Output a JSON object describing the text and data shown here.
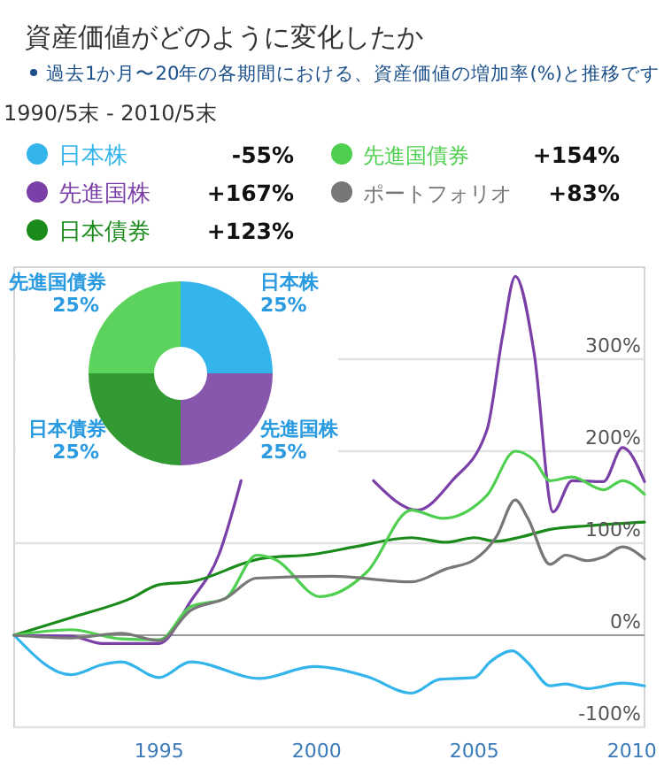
{
  "chart_data": [
    {
      "type": "line",
      "title": "資産価値がどのように変化したか",
      "subtitle": "過去1か月〜20年の各期間における、資産価値の増加率(%)と推移です",
      "annotations": [
        "1990/5末 - 2010/5末",
        "-55%",
        "+167%",
        "+123%",
        "+154%",
        "+83%"
      ],
      "series": [
        {
          "name": "日本株",
          "color": "#33b5ec",
          "x": [
            1990.4,
            1992.2,
            1993.2,
            1993.8,
            1995.0,
            1996.0,
            1998.2,
            1999.9,
            2001.6,
            2003.0,
            2003.9,
            2005.0,
            2005.5,
            2006.2,
            2006.7,
            2007.4,
            2007.9,
            2008.6,
            2009.7,
            2010.4
          ],
          "values": [
            0,
            -43,
            -32,
            -29,
            -46,
            -29,
            -47,
            -34,
            -45,
            -63,
            -48,
            -46,
            -29,
            -17,
            -30,
            -55,
            -53,
            -58,
            -52,
            -55
          ]
        },
        {
          "name": "先進国株",
          "color": "#7b3fa8",
          "x": [
            1990.4,
            1992.2,
            1993.2,
            1995.0,
            1996.0,
            1996.9,
            1997.6,
            1998.5,
            2001.8,
            2003.2,
            2004.3,
            2005.4,
            2005.9,
            2006.3,
            2006.9,
            2007.5,
            2008.1,
            2009.1,
            2009.7,
            2010.4
          ],
          "values": [
            0,
            -1,
            -9,
            -9,
            37,
            88,
            168,
            null,
            168,
            136,
            168,
            223,
            326,
            390,
            306,
            134,
            168,
            167,
            204,
            167
          ]
        },
        {
          "name": "日本債券",
          "color": "#1a8a1a",
          "x": [
            1990.4,
            1992.2,
            1994.1,
            1995.0,
            1996.0,
            1998.2,
            1999.9,
            2001.2,
            2003.0,
            2004.1,
            2005.0,
            2005.7,
            2006.5,
            2007.4,
            2008.6,
            2010.4
          ],
          "values": [
            0,
            19,
            40,
            55,
            58,
            83,
            88,
            96,
            106,
            101,
            106,
            102,
            107,
            115,
            119,
            123
          ]
        },
        {
          "name": "先進国債券",
          "color": "#4fcf4f",
          "x": [
            1990.4,
            1992.2,
            1993.8,
            1995.0,
            1996.0,
            1997.1,
            1998.1,
            1998.7,
            2000.1,
            2001.6,
            2003.0,
            2004.0,
            2005.4,
            2006.3,
            2006.9,
            2007.4,
            2008.1,
            2009.1,
            2009.7,
            2010.4
          ],
          "values": [
            0,
            6,
            -4,
            -5,
            31,
            40,
            87,
            82,
            42,
            69,
            136,
            127,
            152,
            200,
            190,
            168,
            172,
            158,
            168,
            153
          ]
        },
        {
          "name": "ポートフォリオ",
          "color": "#777777",
          "x": [
            1990.4,
            1992.2,
            1993.8,
            1995.0,
            1996.0,
            1997.1,
            1998.1,
            2000.5,
            2003.0,
            2004.1,
            2005.0,
            2005.7,
            2006.3,
            2006.7,
            2007.4,
            2007.9,
            2008.6,
            2009.1,
            2009.7,
            2010.4
          ],
          "values": [
            0,
            -3,
            2,
            -6,
            27,
            40,
            62,
            64,
            58,
            72,
            82,
            107,
            147,
            127,
            77,
            87,
            81,
            85,
            96,
            83
          ]
        }
      ],
      "xlim": [
        1990.4,
        2010.4
      ],
      "xticks": [
        1995,
        2000,
        2005,
        2010
      ],
      "ylim": [
        -100,
        400
      ],
      "yticks": [
        {
          "value": -100,
          "label": "-100%"
        },
        {
          "value": 0,
          "label": "0%"
        },
        {
          "value": 100,
          "label": "100%"
        },
        {
          "value": 200,
          "label": "200%"
        },
        {
          "value": 300,
          "label": "300%"
        }
      ],
      "grid": "y",
      "legend": "top"
    },
    {
      "type": "donut",
      "categories": [
        "日本株",
        "先進国株",
        "日本債券",
        "先進国債券"
      ],
      "values": [
        25,
        25,
        25,
        25
      ],
      "colors": [
        "#33b5ec",
        "#8757ad",
        "#339933",
        "#5cd35c"
      ],
      "value_labels": [
        "25%",
        "25%",
        "25%",
        "25%"
      ]
    }
  ]
}
